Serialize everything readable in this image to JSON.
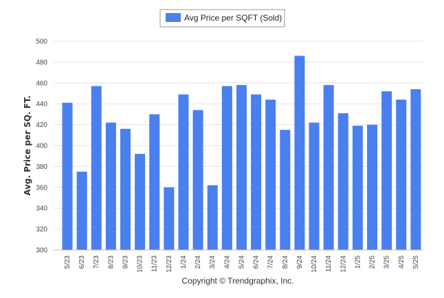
{
  "chart_data": {
    "type": "bar",
    "categories": [
      "5/23",
      "6/23",
      "7/23",
      "8/23",
      "9/23",
      "10/23",
      "11/23",
      "12/23",
      "1/24",
      "2/24",
      "3/24",
      "4/24",
      "5/24",
      "6/24",
      "7/24",
      "8/24",
      "9/24",
      "10/24",
      "11/24",
      "12/24",
      "1/25",
      "2/25",
      "3/25",
      "4/25",
      "5/25"
    ],
    "series": [
      {
        "name": "Avg Price per SQFT (Sold)",
        "values": [
          441,
          375,
          457,
          422,
          416,
          392,
          430,
          360,
          449,
          434,
          362,
          457,
          458,
          449,
          444,
          415,
          486,
          422,
          458,
          431,
          419,
          420,
          452,
          444,
          454
        ]
      }
    ],
    "ylabel": "Avg. Price per SQ. FT.",
    "xlabel": "",
    "ylim": [
      300,
      500
    ],
    "yticks": [
      300,
      320,
      340,
      360,
      380,
      400,
      420,
      440,
      460,
      480,
      500
    ],
    "grid": true,
    "legend_position": "top-center",
    "bar_color": "#4a7ff0"
  },
  "footer": {
    "copyright": "Copyright © Trendgraphix, Inc."
  }
}
